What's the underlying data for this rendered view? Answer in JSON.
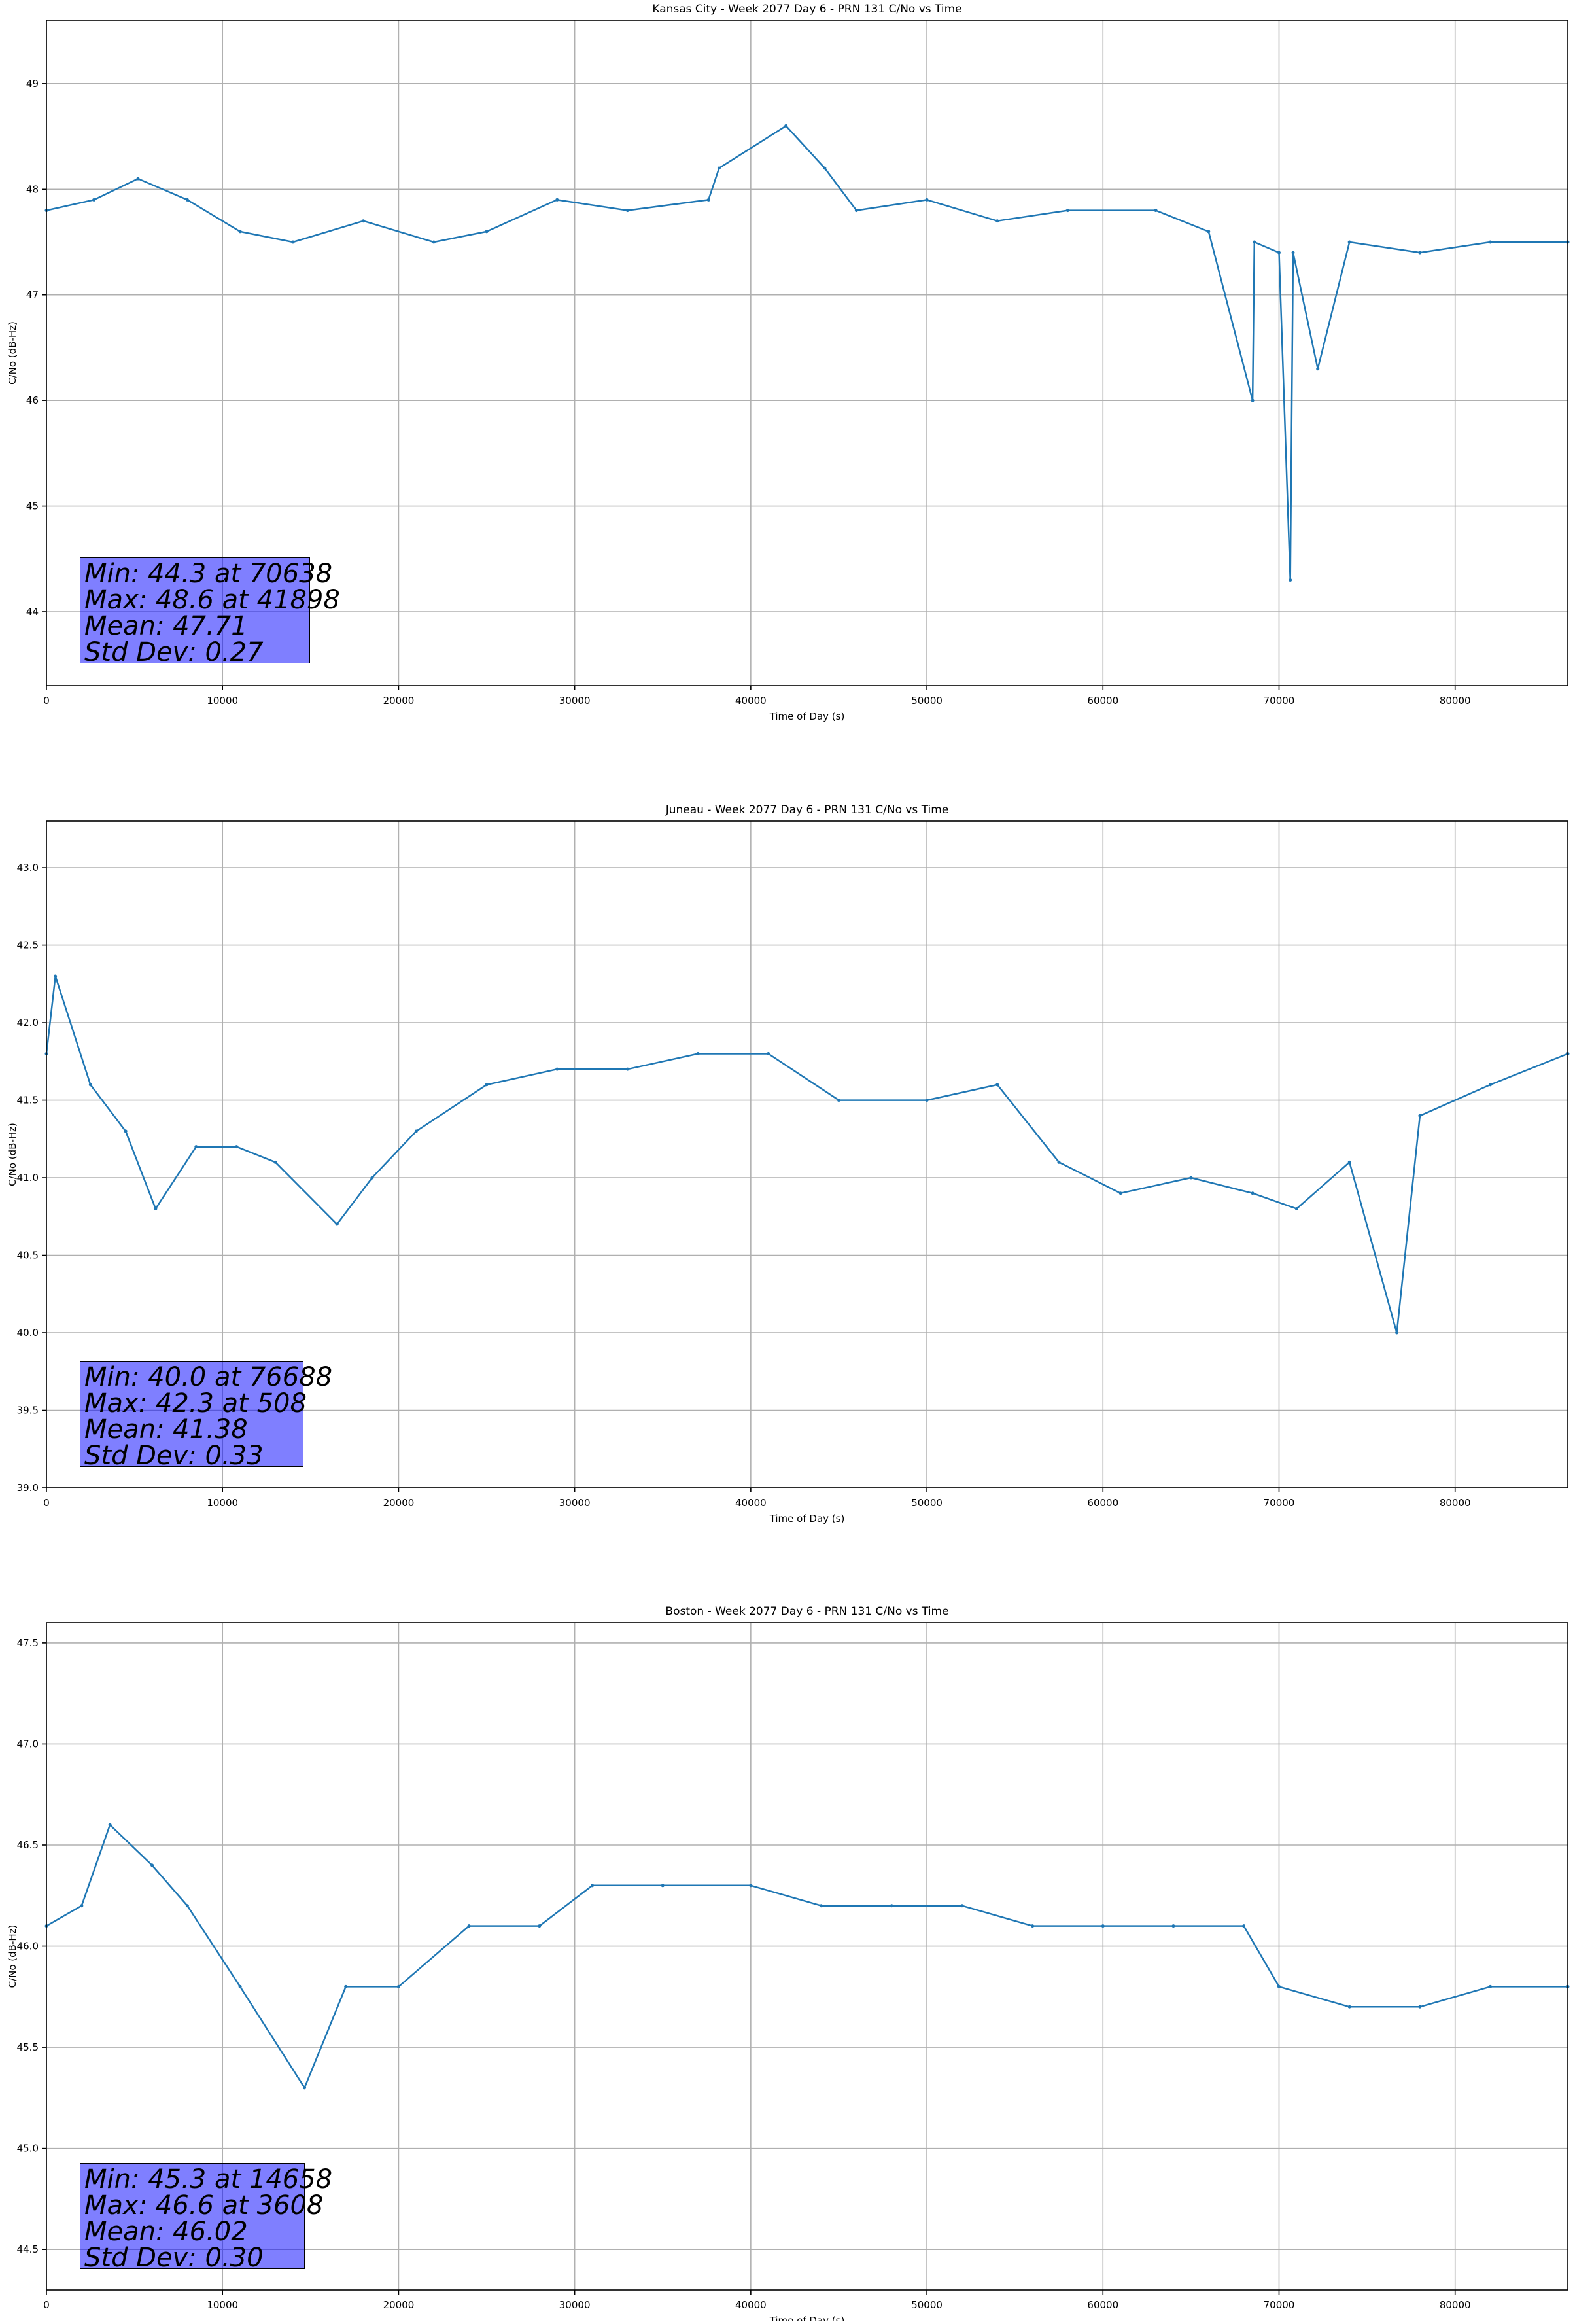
{
  "colors": {
    "series": "#1f77b4",
    "grid": "#b0b0b0",
    "stats_box": "rgba(0,0,255,0.5)"
  },
  "chart_data": [
    {
      "type": "line",
      "title": "Kansas City - Week 2077 Day 6 - PRN 131 C/No vs Time",
      "xlabel": "Time of Day (s)",
      "ylabel": "C/No (dB-Hz)",
      "xlim": [
        0,
        86400
      ],
      "ylim": [
        43.3,
        49.6
      ],
      "xticks": [
        0,
        10000,
        20000,
        30000,
        40000,
        50000,
        60000,
        70000,
        80000
      ],
      "yticks": [
        44,
        45,
        46,
        47,
        48,
        49
      ],
      "ytick_labels": [
        "44",
        "45",
        "46",
        "47",
        "48",
        "49"
      ],
      "grid": true,
      "series": [
        {
          "x": [
            0,
            2700,
            5200,
            8000,
            11000,
            14000,
            18000,
            22000,
            25000,
            29000,
            33000,
            37600,
            38200,
            42000,
            44200,
            46000,
            50000,
            54000,
            58000,
            63000,
            66000,
            68500,
            68600,
            70000,
            70638,
            70800,
            72200,
            74000,
            78000,
            82000,
            86400
          ],
          "y": [
            47.8,
            47.9,
            48.1,
            47.9,
            47.6,
            47.5,
            47.7,
            47.5,
            47.6,
            47.9,
            47.8,
            47.9,
            48.2,
            48.6,
            48.2,
            47.8,
            47.9,
            47.7,
            47.8,
            47.8,
            47.6,
            46.0,
            47.5,
            47.4,
            44.3,
            47.4,
            46.3,
            47.5,
            47.4,
            47.5,
            47.5
          ]
        }
      ],
      "stats": {
        "min": "Min: 44.3 at 70638",
        "max": "Max: 48.6 at 41898",
        "mean": "Mean: 47.71",
        "std": "Std Dev: 0.27"
      }
    },
    {
      "type": "line",
      "title": "Juneau - Week 2077 Day 6 - PRN 131 C/No vs Time",
      "xlabel": "Time of Day (s)",
      "ylabel": "C/No (dB-Hz)",
      "xlim": [
        0,
        86400
      ],
      "ylim": [
        39.0,
        43.3
      ],
      "xticks": [
        0,
        10000,
        20000,
        30000,
        40000,
        50000,
        60000,
        70000,
        80000
      ],
      "yticks": [
        39.0,
        39.5,
        40.0,
        40.5,
        41.0,
        41.5,
        42.0,
        42.5,
        43.0
      ],
      "ytick_labels": [
        "39.0",
        "39.5",
        "40.0",
        "40.5",
        "41.0",
        "41.5",
        "42.0",
        "42.5",
        "43.0"
      ],
      "grid": true,
      "series": [
        {
          "x": [
            0,
            508,
            2500,
            4500,
            6200,
            8500,
            10800,
            13000,
            16500,
            18500,
            21000,
            25000,
            29000,
            33000,
            37000,
            41000,
            45000,
            50000,
            54000,
            57500,
            61000,
            65000,
            68500,
            71000,
            74000,
            76688,
            78000,
            82000,
            86400
          ],
          "y": [
            41.8,
            42.3,
            41.6,
            41.3,
            40.8,
            41.2,
            41.2,
            41.1,
            40.7,
            41.0,
            41.3,
            41.6,
            41.7,
            41.7,
            41.8,
            41.8,
            41.5,
            41.5,
            41.6,
            41.1,
            40.9,
            41.0,
            40.9,
            40.8,
            41.1,
            40.0,
            41.4,
            41.6,
            41.8
          ]
        }
      ],
      "stats": {
        "min": "Min: 40.0 at 76688",
        "max": "Max: 42.3 at 508",
        "mean": "Mean: 41.38",
        "std": "Std Dev: 0.33"
      }
    },
    {
      "type": "line",
      "title": "Boston - Week 2077 Day 6 - PRN 131 C/No vs Time",
      "xlabel": "Time of Day (s)",
      "ylabel": "C/No (dB-Hz)",
      "xlim": [
        0,
        86400
      ],
      "ylim": [
        44.3,
        47.6
      ],
      "xticks": [
        0,
        10000,
        20000,
        30000,
        40000,
        50000,
        60000,
        70000,
        80000
      ],
      "yticks": [
        44.5,
        45.0,
        45.5,
        46.0,
        46.5,
        47.0,
        47.5
      ],
      "ytick_labels": [
        "44.5",
        "45.0",
        "45.5",
        "46.0",
        "46.5",
        "47.0",
        "47.5"
      ],
      "grid": true,
      "series": [
        {
          "x": [
            0,
            2000,
            3608,
            6000,
            8000,
            11000,
            14658,
            17000,
            20000,
            24000,
            28000,
            31000,
            35000,
            40000,
            44000,
            48000,
            52000,
            56000,
            60000,
            64000,
            68000,
            70000,
            74000,
            78000,
            82000,
            86400
          ],
          "y": [
            46.1,
            46.2,
            46.6,
            46.4,
            46.2,
            45.8,
            45.3,
            45.8,
            45.8,
            46.1,
            46.1,
            46.3,
            46.3,
            46.3,
            46.2,
            46.2,
            46.2,
            46.1,
            46.1,
            46.1,
            46.1,
            45.8,
            45.7,
            45.7,
            45.8,
            45.8
          ]
        }
      ],
      "stats": {
        "min": "Min: 45.3 at 14658",
        "max": "Max: 46.6 at 3608",
        "mean": "Mean: 46.02",
        "std": "Std Dev: 0.30"
      }
    }
  ]
}
